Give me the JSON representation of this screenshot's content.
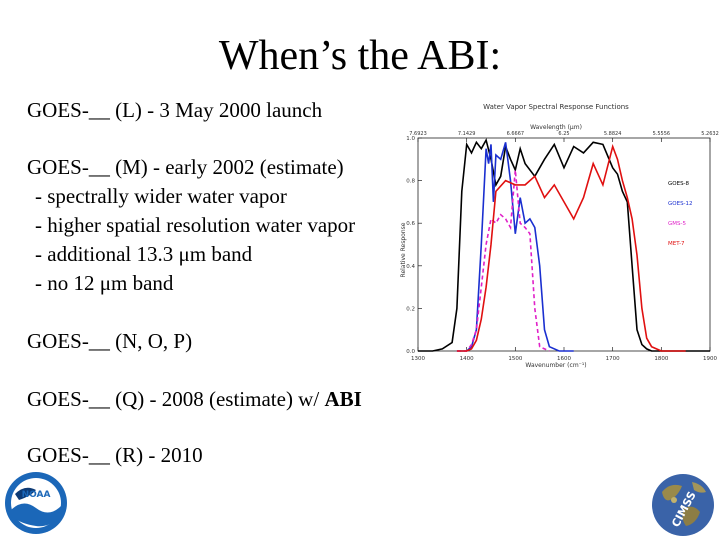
{
  "slide": {
    "title": "When’s the ABI:",
    "lines": [
      "GOES-__ (L) - 3 May 2000 launch",
      "GOES-__ (M) - early 2002 (estimate)",
      "- spectrally wider water vapor",
      "- higher spatial resolution water vapor",
      "- additional 13.3 μm band",
      "- no 12 μm band",
      "GOES-__ (N, O, P)",
      "GOES-__ (Q) - 2008 (estimate)  w/ ",
      "ABI",
      "GOES-__ (R) - 2010"
    ]
  },
  "chart_data": {
    "type": "line",
    "title": "Water Vapor Spectral Response Functions",
    "xlabel": "Wavenumber (cm⁻¹)",
    "ylabel": "Relative Response",
    "top_axis_label": "Wavelength (μm)",
    "xlim": [
      1300,
      1900
    ],
    "ylim": [
      0,
      1.0
    ],
    "x_ticks": [
      1300,
      1400,
      1500,
      1600,
      1700,
      1800,
      1900
    ],
    "y_ticks": [
      0,
      0.2,
      0.4,
      0.6,
      0.8,
      1.0
    ],
    "top_ticks": [
      "7.6923",
      "7.1429",
      "6.6667",
      "6.25",
      "5.8824",
      "5.5556",
      "5.2632"
    ],
    "legend_position": "right",
    "series": [
      {
        "name": "GOES-8",
        "color": "#000000",
        "dash": "",
        "x": [
          1300,
          1330,
          1350,
          1370,
          1380,
          1390,
          1400,
          1410,
          1420,
          1430,
          1440,
          1450,
          1460,
          1470,
          1480,
          1490,
          1500,
          1510,
          1520,
          1540,
          1560,
          1580,
          1600,
          1620,
          1640,
          1660,
          1680,
          1700,
          1710,
          1720,
          1730,
          1740,
          1750,
          1760,
          1770,
          1780,
          1800,
          1850,
          1900
        ],
        "y": [
          0,
          0,
          0.01,
          0.04,
          0.2,
          0.75,
          0.97,
          0.93,
          0.98,
          0.95,
          0.99,
          0.9,
          0.78,
          0.82,
          0.96,
          0.9,
          0.85,
          0.95,
          0.88,
          0.82,
          0.9,
          0.97,
          0.86,
          0.96,
          0.93,
          0.98,
          0.97,
          0.86,
          0.83,
          0.75,
          0.7,
          0.4,
          0.1,
          0.03,
          0.01,
          0,
          0,
          0,
          0
        ]
      },
      {
        "name": "GOES-12",
        "color": "#1a2fd0",
        "dash": "",
        "x": [
          1380,
          1400,
          1410,
          1420,
          1430,
          1440,
          1445,
          1450,
          1455,
          1460,
          1470,
          1480,
          1490,
          1500,
          1510,
          1520,
          1530,
          1540,
          1550,
          1560,
          1570,
          1590,
          1620
        ],
        "y": [
          0,
          0,
          0.02,
          0.1,
          0.5,
          0.95,
          0.88,
          0.97,
          0.7,
          0.92,
          0.9,
          0.98,
          0.8,
          0.55,
          0.72,
          0.6,
          0.62,
          0.58,
          0.4,
          0.1,
          0.02,
          0,
          0
        ]
      },
      {
        "name": "GMS-5",
        "color": "#e020c8",
        "dash": "4,3",
        "x": [
          1380,
          1400,
          1410,
          1420,
          1430,
          1440,
          1450,
          1460,
          1470,
          1480,
          1490,
          1500,
          1510,
          1520,
          1530,
          1540,
          1550,
          1570
        ],
        "y": [
          0,
          0,
          0.03,
          0.1,
          0.3,
          0.5,
          0.62,
          0.6,
          0.64,
          0.62,
          0.58,
          0.85,
          0.6,
          0.58,
          0.55,
          0.2,
          0.02,
          0
        ]
      },
      {
        "name": "MET-7",
        "color": "#e01010",
        "dash": "",
        "x": [
          1380,
          1400,
          1410,
          1420,
          1430,
          1440,
          1450,
          1460,
          1480,
          1500,
          1520,
          1540,
          1560,
          1580,
          1600,
          1620,
          1640,
          1660,
          1680,
          1700,
          1710,
          1720,
          1730,
          1740,
          1750,
          1760,
          1770,
          1780,
          1790,
          1800,
          1820,
          1850
        ],
        "y": [
          0,
          0,
          0.01,
          0.05,
          0.15,
          0.3,
          0.5,
          0.75,
          0.8,
          0.78,
          0.78,
          0.82,
          0.72,
          0.78,
          0.7,
          0.62,
          0.72,
          0.88,
          0.78,
          0.96,
          0.9,
          0.8,
          0.72,
          0.62,
          0.45,
          0.2,
          0.06,
          0.02,
          0.01,
          0,
          0,
          0
        ]
      }
    ]
  }
}
